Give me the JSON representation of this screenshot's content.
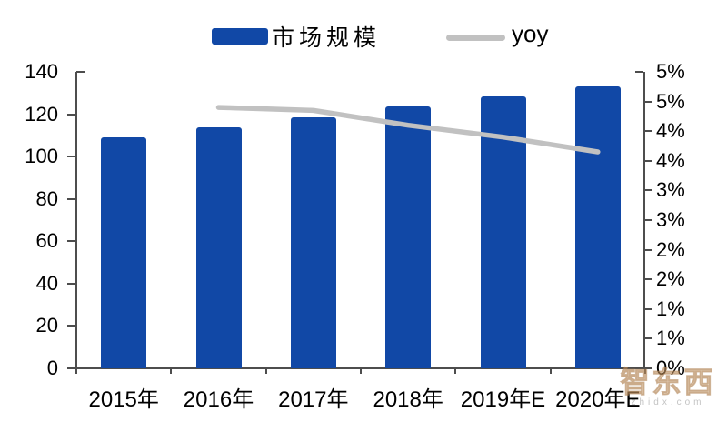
{
  "chart_data": {
    "type": "bar+line",
    "title": "",
    "categories": [
      "2015年",
      "2016年",
      "2017年",
      "2018年",
      "2019年E",
      "2020年E"
    ],
    "series": [
      {
        "name": "市场规模",
        "type": "bar",
        "axis": "left",
        "color": "#1148A6",
        "values": [
          109,
          114,
          118.5,
          123.5,
          128.5,
          133
        ]
      },
      {
        "name": "yoy",
        "type": "line",
        "axis": "right",
        "color": "#C1C1C1",
        "values": [
          null,
          4.4,
          4.35,
          4.1,
          3.9,
          3.65
        ]
      }
    ],
    "left_axis": {
      "min": 0,
      "max": 140,
      "step": 20,
      "tick_labels_top_to_bottom": [
        "140",
        "120",
        "100",
        "80",
        "60",
        "40",
        "20",
        "0"
      ]
    },
    "right_axis": {
      "min": 0,
      "max": 5,
      "step": 0.5,
      "unit": "%",
      "tick_labels_top_to_bottom": [
        "5%",
        "5%",
        "4%",
        "4%",
        "3%",
        "3%",
        "2%",
        "2%",
        "1%",
        "1%",
        "0%"
      ]
    },
    "legend_position": "top-center",
    "grid": false,
    "background": "#ffffff"
  },
  "legend": {
    "bar_label": "市场规模",
    "line_label": "yoy"
  },
  "watermark": {
    "logo_text": "智东西",
    "site_text": "zhidx.com"
  },
  "colors": {
    "bar_blue": "#1148A6",
    "line_gray": "#C1C1C1",
    "axis_gray": "#4d4d4d",
    "text_black": "#000000"
  }
}
